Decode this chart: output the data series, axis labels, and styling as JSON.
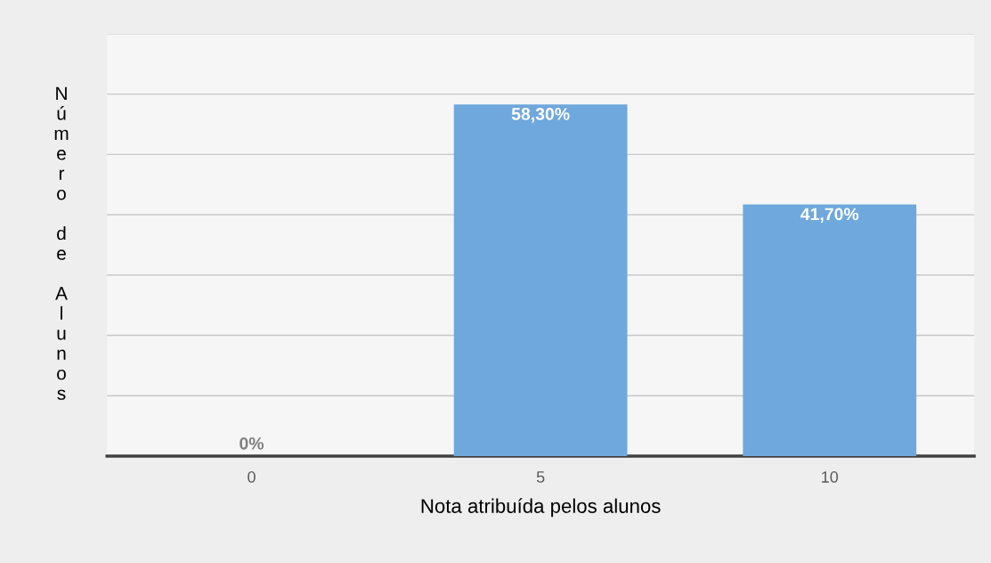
{
  "chart_data": {
    "type": "bar",
    "xlabel": "Nota atribuída pelos alunos",
    "ylabel": "Número de Alunos",
    "categories": [
      "0",
      "5",
      "10"
    ],
    "values": [
      0,
      58.3,
      41.7
    ],
    "value_labels": [
      "0%",
      "58,30%",
      "41,70%"
    ],
    "color": "#6fa8dc",
    "ylim": [
      0,
      70
    ],
    "yticks": [
      {
        "value": 0,
        "label": null
      },
      {
        "value": 10,
        "label": null
      },
      {
        "value": 20,
        "label": null
      },
      {
        "value": 30,
        "label": null
      },
      {
        "value": 40,
        "label": null
      },
      {
        "value": 50,
        "label": null
      },
      {
        "value": 60,
        "label": null
      },
      {
        "value": 70,
        "label": null
      }
    ],
    "tick_labels": "x",
    "grid": "y",
    "legend": false
  }
}
